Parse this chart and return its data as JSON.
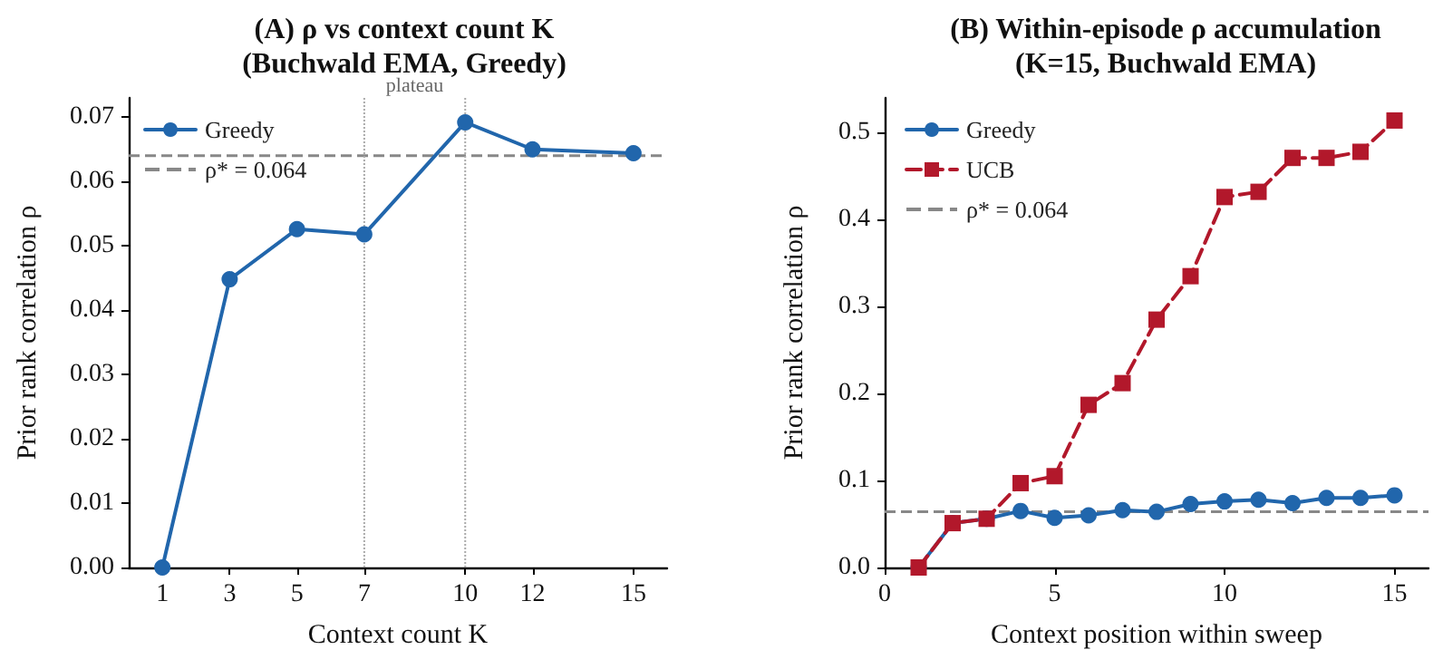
{
  "chart_data": [
    {
      "type": "line",
      "title": "(A) ρ vs context count K\n(Buchwald EMA, Greedy)",
      "xlabel": "Context count K",
      "ylabel": "Prior rank correlation ρ",
      "x": [
        1,
        3,
        5,
        7,
        10,
        12,
        15
      ],
      "series": [
        {
          "name": "Greedy",
          "color": "#2166ac",
          "values": [
            0.0,
            0.0448,
            0.0526,
            0.0518,
            0.0692,
            0.065,
            0.0644
          ],
          "marker": "circle",
          "line_style": "solid"
        }
      ],
      "xlim": [
        0,
        16
      ],
      "xticks": [
        1,
        3,
        5,
        7,
        10,
        12,
        15
      ],
      "ylim": [
        0,
        0.073
      ],
      "yticks": [
        {
          "value": 0,
          "label": "0.00"
        },
        0.01,
        0.02,
        0.03,
        0.04,
        0.05,
        0.06,
        0.07
      ],
      "ref_lines": [
        {
          "axis": "y",
          "value": 0.064,
          "label": "ρ* = 0.064",
          "color": "#888888",
          "line_style": "dashed"
        },
        {
          "axis": "x",
          "value": 7,
          "label": null,
          "color": "#aaaaaa",
          "line_style": "dotted"
        },
        {
          "axis": "x",
          "value": 10,
          "label": null,
          "color": "#aaaaaa",
          "line_style": "dotted"
        }
      ],
      "annotations": [
        "plateau"
      ],
      "legend": "top left",
      "grid": false
    },
    {
      "type": "line",
      "title": "(B) Within-episode ρ accumulation\n(K=15, Buchwald EMA)",
      "xlabel": "Context position within sweep",
      "ylabel": "Prior rank correlation ρ",
      "x": [
        1,
        2,
        3,
        4,
        5,
        6,
        7,
        8,
        9,
        10,
        11,
        12,
        13,
        14,
        15
      ],
      "series": [
        {
          "name": "Greedy",
          "color": "#2166ac",
          "values": [
            0.0,
            0.051,
            0.056,
            0.065,
            0.057,
            0.06,
            0.066,
            0.064,
            0.073,
            0.076,
            0.078,
            0.074,
            0.08,
            0.08,
            0.083
          ],
          "marker": "circle",
          "line_style": "solid"
        },
        {
          "name": "UCB",
          "color": "#b2182b",
          "values": [
            0.0,
            0.051,
            0.056,
            0.097,
            0.105,
            0.187,
            0.212,
            0.285,
            0.335,
            0.426,
            0.432,
            0.471,
            0.471,
            0.478,
            0.514
          ],
          "marker": "square",
          "line_style": "dashed"
        }
      ],
      "xlim": [
        0,
        16
      ],
      "xticks": [
        0,
        5,
        10,
        15
      ],
      "ylim": [
        0,
        0.54
      ],
      "yticks": [
        {
          "value": 0,
          "label": "0.0"
        },
        0.1,
        0.2,
        0.3,
        0.4,
        0.5
      ],
      "ref_lines": [
        {
          "axis": "y",
          "value": 0.064,
          "label": "ρ* = 0.064",
          "color": "#888888",
          "line_style": "dashed"
        }
      ],
      "legend": "top left",
      "grid": false
    }
  ]
}
